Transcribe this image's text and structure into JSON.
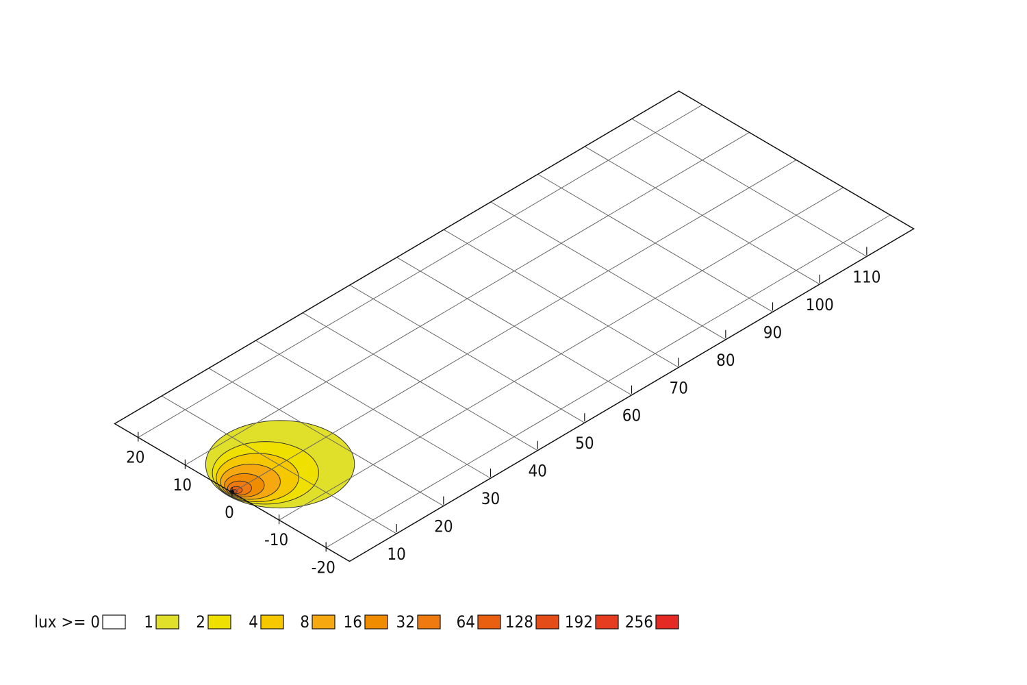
{
  "chart_data": {
    "type": "isolux",
    "xlim": [
      0,
      120
    ],
    "xticks": [
      10,
      20,
      30,
      40,
      50,
      60,
      70,
      80,
      90,
      100,
      110
    ],
    "ylim": [
      -25,
      25
    ],
    "yticks": [
      -20,
      -10,
      0,
      10,
      20
    ],
    "grid": true,
    "legend_title": "lux >=",
    "levels": [
      {
        "value": 0,
        "color": "#ffffff"
      },
      {
        "value": 1,
        "color": "#e0e02a",
        "x": 10.2,
        "y": 0,
        "r": 11.2
      },
      {
        "value": 2,
        "color": "#f0e000",
        "x": 7.1,
        "y": 0,
        "r": 8
      },
      {
        "value": 4,
        "color": "#f5c800",
        "x": 5.4,
        "y": 0,
        "r": 6.2
      },
      {
        "value": 8,
        "color": "#f5a810",
        "x": 3.9,
        "y": 0,
        "r": 4.5
      },
      {
        "value": 16,
        "color": "#f08c00",
        "x": 2.6,
        "y": 0,
        "r": 3
      },
      {
        "value": 32,
        "color": "#ee7a10",
        "x": 1.6,
        "y": 0,
        "r": 1.8
      },
      {
        "value": 64,
        "color": "#e86010",
        "x": 0.9,
        "y": 0,
        "r": 0.9
      },
      {
        "value": 128,
        "color": "#e44c18",
        "x": 0.5,
        "y": 0,
        "r": 0.4
      },
      {
        "value": 192,
        "color": "#e63c20"
      },
      {
        "value": 256,
        "color": "#e42a22"
      }
    ]
  }
}
